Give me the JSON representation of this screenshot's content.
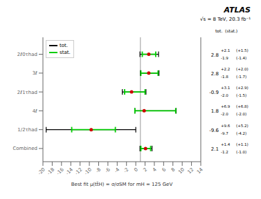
{
  "chart_data": {
    "type": "scatter",
    "categories": [
      "2ℓ0τhad",
      "3ℓ",
      "2ℓ1τhad",
      "4ℓ",
      "1/2τhad",
      "Combined"
    ],
    "values": [
      2.8,
      2.8,
      -0.9,
      1.8,
      -9.6,
      2.1
    ],
    "color": "#cc0000",
    "data_labels": true,
    "series": [
      {
        "name": "tot.",
        "color": "#000000",
        "error_plus": [
          2.1,
          2.2,
          3.1,
          6.9,
          9.6,
          1.4
        ],
        "error_minus": [
          1.9,
          1.8,
          2.0,
          2.0,
          9.7,
          1.2
        ],
        "error_plus_labels": [
          "+2.1",
          "+2.2",
          "+3.1",
          "+6.9",
          "+9.6",
          "+1.4"
        ],
        "error_minus_labels": [
          "-1.9",
          "-1.8",
          "-2.0",
          "-2.0",
          "-9.7",
          "-1.2"
        ]
      },
      {
        "name": "stat.",
        "color": "#00cc00",
        "error_plus": [
          1.5,
          2.0,
          2.9,
          6.8,
          5.2,
          1.1
        ],
        "error_minus": [
          1.4,
          1.7,
          1.5,
          2.0,
          4.2,
          1.0
        ],
        "error_plus_labels": [
          "(+1.5)",
          "(+2.0)",
          "(+2.9)",
          "(+6.8)",
          "(+5.2)",
          "(+1.1)"
        ],
        "error_minus_labels": [
          "(-1.4)",
          "(-1.7)",
          "(-1.5)",
          "(-2.0)",
          "(-4.2)",
          "(-1.0)"
        ]
      }
    ],
    "xlabel": "Best fit μ(tt̄H) = σ/σSM for mH = 125 GeV",
    "xlim": [
      -20,
      14
    ],
    "xticks": [
      -20,
      -18,
      -16,
      -14,
      -12,
      -10,
      -8,
      -6,
      -4,
      -2,
      0,
      2,
      4,
      6,
      8,
      10,
      12,
      14
    ],
    "reference_line": 1,
    "annotations": [
      "ATLAS",
      "√s = 8 TeV, 20.3 fb⁻¹",
      "tot.  (stat.)"
    ],
    "legend": "upper left",
    "grid": false
  }
}
